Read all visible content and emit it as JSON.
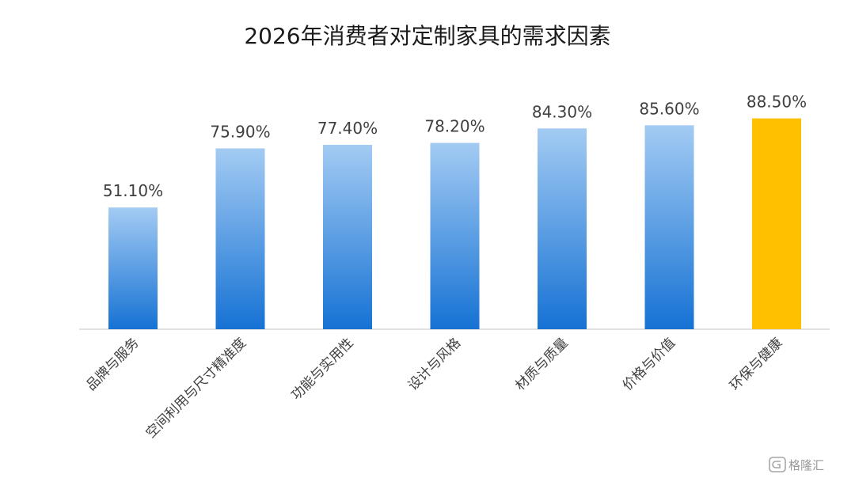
{
  "chart_data": {
    "type": "bar",
    "title": "2026年消费者对定制家具的需求因素",
    "categories": [
      "品牌与服务",
      "空间利用与尺寸精准度",
      "功能与实用性",
      "设计与风格",
      "材质与质量",
      "价格与价值",
      "环保与健康"
    ],
    "values": [
      51.1,
      75.9,
      77.4,
      78.2,
      84.3,
      85.6,
      88.5
    ],
    "value_labels": [
      "51.10%",
      "75.90%",
      "77.40%",
      "78.20%",
      "84.30%",
      "85.60%",
      "88.50%"
    ],
    "highlight_index": 6,
    "colors": {
      "bar_top": "#a3cbf3",
      "bar_bottom": "#1672d4",
      "highlight": "#ffc000",
      "axis": "#d9d9d9"
    },
    "grid": false,
    "legend": "none"
  },
  "watermark": {
    "text": "格隆汇",
    "icon": "glh-logo-icon"
  }
}
